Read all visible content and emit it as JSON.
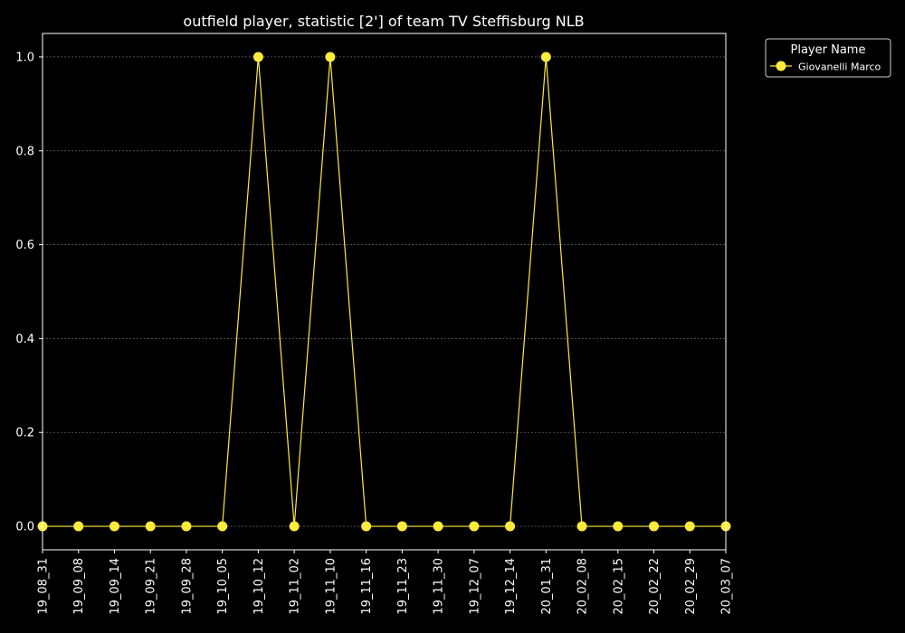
{
  "chart_data": {
    "type": "line",
    "title": "outfield player, statistic [2'] of team TV Steffisburg NLB",
    "xlabel": "",
    "ylabel": "",
    "x": [
      "19_08_31",
      "19_09_08",
      "19_09_14",
      "19_09_21",
      "19_09_28",
      "19_10_05",
      "19_10_12",
      "19_11_02",
      "19_11_10",
      "19_11_16",
      "19_11_23",
      "19_11_30",
      "19_12_07",
      "19_12_14",
      "20_01_31",
      "20_02_08",
      "20_02_15",
      "20_02_22",
      "20_02_29",
      "20_03_07"
    ],
    "ylim": [
      -0.05,
      1.05
    ],
    "yticks": [
      "0.0",
      "0.2",
      "0.4",
      "0.6",
      "0.8",
      "1.0"
    ],
    "series": [
      {
        "name": "Giovanelli Marco",
        "color": "#ffeb3b",
        "values": [
          0,
          0,
          0,
          0,
          0,
          0,
          1,
          0,
          1,
          0,
          0,
          0,
          0,
          0,
          1,
          0,
          0,
          0,
          0,
          0
        ]
      }
    ],
    "grid": "y-dashed",
    "legend": {
      "title": "Player Name",
      "placement": "outside-top-right"
    }
  },
  "colors": {
    "background": "#000000",
    "foreground": "#ffffff",
    "grid": "#808080"
  }
}
